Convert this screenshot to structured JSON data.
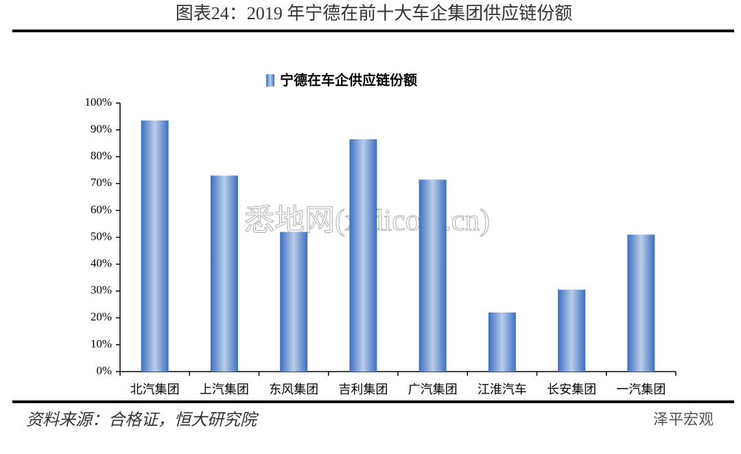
{
  "header": {
    "title": "图表24：2019 年宁德在前十大车企集团供应链份额"
  },
  "chart_data": {
    "type": "bar",
    "legend_label": "宁德在车企供应链份额",
    "categories": [
      "北汽集团",
      "上汽集团",
      "东风集团",
      "吉利集团",
      "广汽集团",
      "江淮汽车",
      "长安集团",
      "一汽集团"
    ],
    "values": [
      93.5,
      73,
      52,
      86.5,
      71.5,
      22,
      30.5,
      51
    ],
    "color": "#3c6fbf",
    "ylim": [
      0,
      100
    ],
    "yticks": [
      {
        "value": 0,
        "label": "0%"
      },
      {
        "value": 10,
        "label": "10%"
      },
      {
        "value": 20,
        "label": "20%"
      },
      {
        "value": 30,
        "label": "30%"
      },
      {
        "value": 40,
        "label": "40%"
      },
      {
        "value": 50,
        "label": "50%"
      },
      {
        "value": 60,
        "label": "60%"
      },
      {
        "value": 70,
        "label": "70%"
      },
      {
        "value": 80,
        "label": "80%"
      },
      {
        "value": 90,
        "label": "90%"
      },
      {
        "value": 100,
        "label": "100%"
      }
    ]
  },
  "footer": {
    "source": "资料来源：合格证，恒大研究院",
    "brand": "泽平宏观"
  },
  "watermark": "悉地网(xidicom.cn)"
}
